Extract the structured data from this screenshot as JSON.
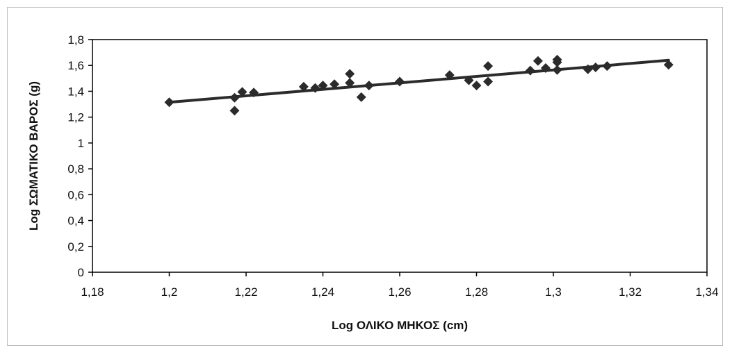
{
  "chart_data": {
    "type": "scatter",
    "xlabel": "Log ΟΛΙΚΟ ΜΗΚΟΣ (cm)",
    "ylabel": "Log ΣΩΜΑΤΙΚΟ ΒΑΡΟΣ (g)",
    "xlim": [
      1.18,
      1.34
    ],
    "ylim": [
      0,
      1.8
    ],
    "x_ticks": [
      "1,18",
      "1,2",
      "1,22",
      "1,24",
      "1,26",
      "1,28",
      "1,3",
      "1,32",
      "1,34"
    ],
    "y_ticks": [
      "0",
      "0,2",
      "0,4",
      "0,6",
      "0,8",
      "1",
      "1,2",
      "1,4",
      "1,6",
      "1,8"
    ],
    "grid": false,
    "legend": "none",
    "marker": "diamond",
    "marker_color": "#2b2b2b",
    "trendline": {
      "x": [
        1.2,
        1.33
      ],
      "y": [
        1.315,
        1.64
      ],
      "color": "#2b2b2b"
    },
    "points": [
      {
        "x": 1.2,
        "y": 1.315
      },
      {
        "x": 1.217,
        "y": 1.25
      },
      {
        "x": 1.217,
        "y": 1.35
      },
      {
        "x": 1.219,
        "y": 1.395
      },
      {
        "x": 1.222,
        "y": 1.39
      },
      {
        "x": 1.235,
        "y": 1.435
      },
      {
        "x": 1.238,
        "y": 1.425
      },
      {
        "x": 1.24,
        "y": 1.445
      },
      {
        "x": 1.243,
        "y": 1.455
      },
      {
        "x": 1.247,
        "y": 1.535
      },
      {
        "x": 1.247,
        "y": 1.465
      },
      {
        "x": 1.25,
        "y": 1.355
      },
      {
        "x": 1.252,
        "y": 1.445
      },
      {
        "x": 1.26,
        "y": 1.475
      },
      {
        "x": 1.273,
        "y": 1.525
      },
      {
        "x": 1.278,
        "y": 1.485
      },
      {
        "x": 1.28,
        "y": 1.445
      },
      {
        "x": 1.283,
        "y": 1.595
      },
      {
        "x": 1.283,
        "y": 1.475
      },
      {
        "x": 1.294,
        "y": 1.56
      },
      {
        "x": 1.296,
        "y": 1.635
      },
      {
        "x": 1.298,
        "y": 1.58
      },
      {
        "x": 1.301,
        "y": 1.645
      },
      {
        "x": 1.301,
        "y": 1.625
      },
      {
        "x": 1.301,
        "y": 1.565
      },
      {
        "x": 1.309,
        "y": 1.57
      },
      {
        "x": 1.311,
        "y": 1.585
      },
      {
        "x": 1.314,
        "y": 1.595
      },
      {
        "x": 1.33,
        "y": 1.605
      }
    ]
  }
}
